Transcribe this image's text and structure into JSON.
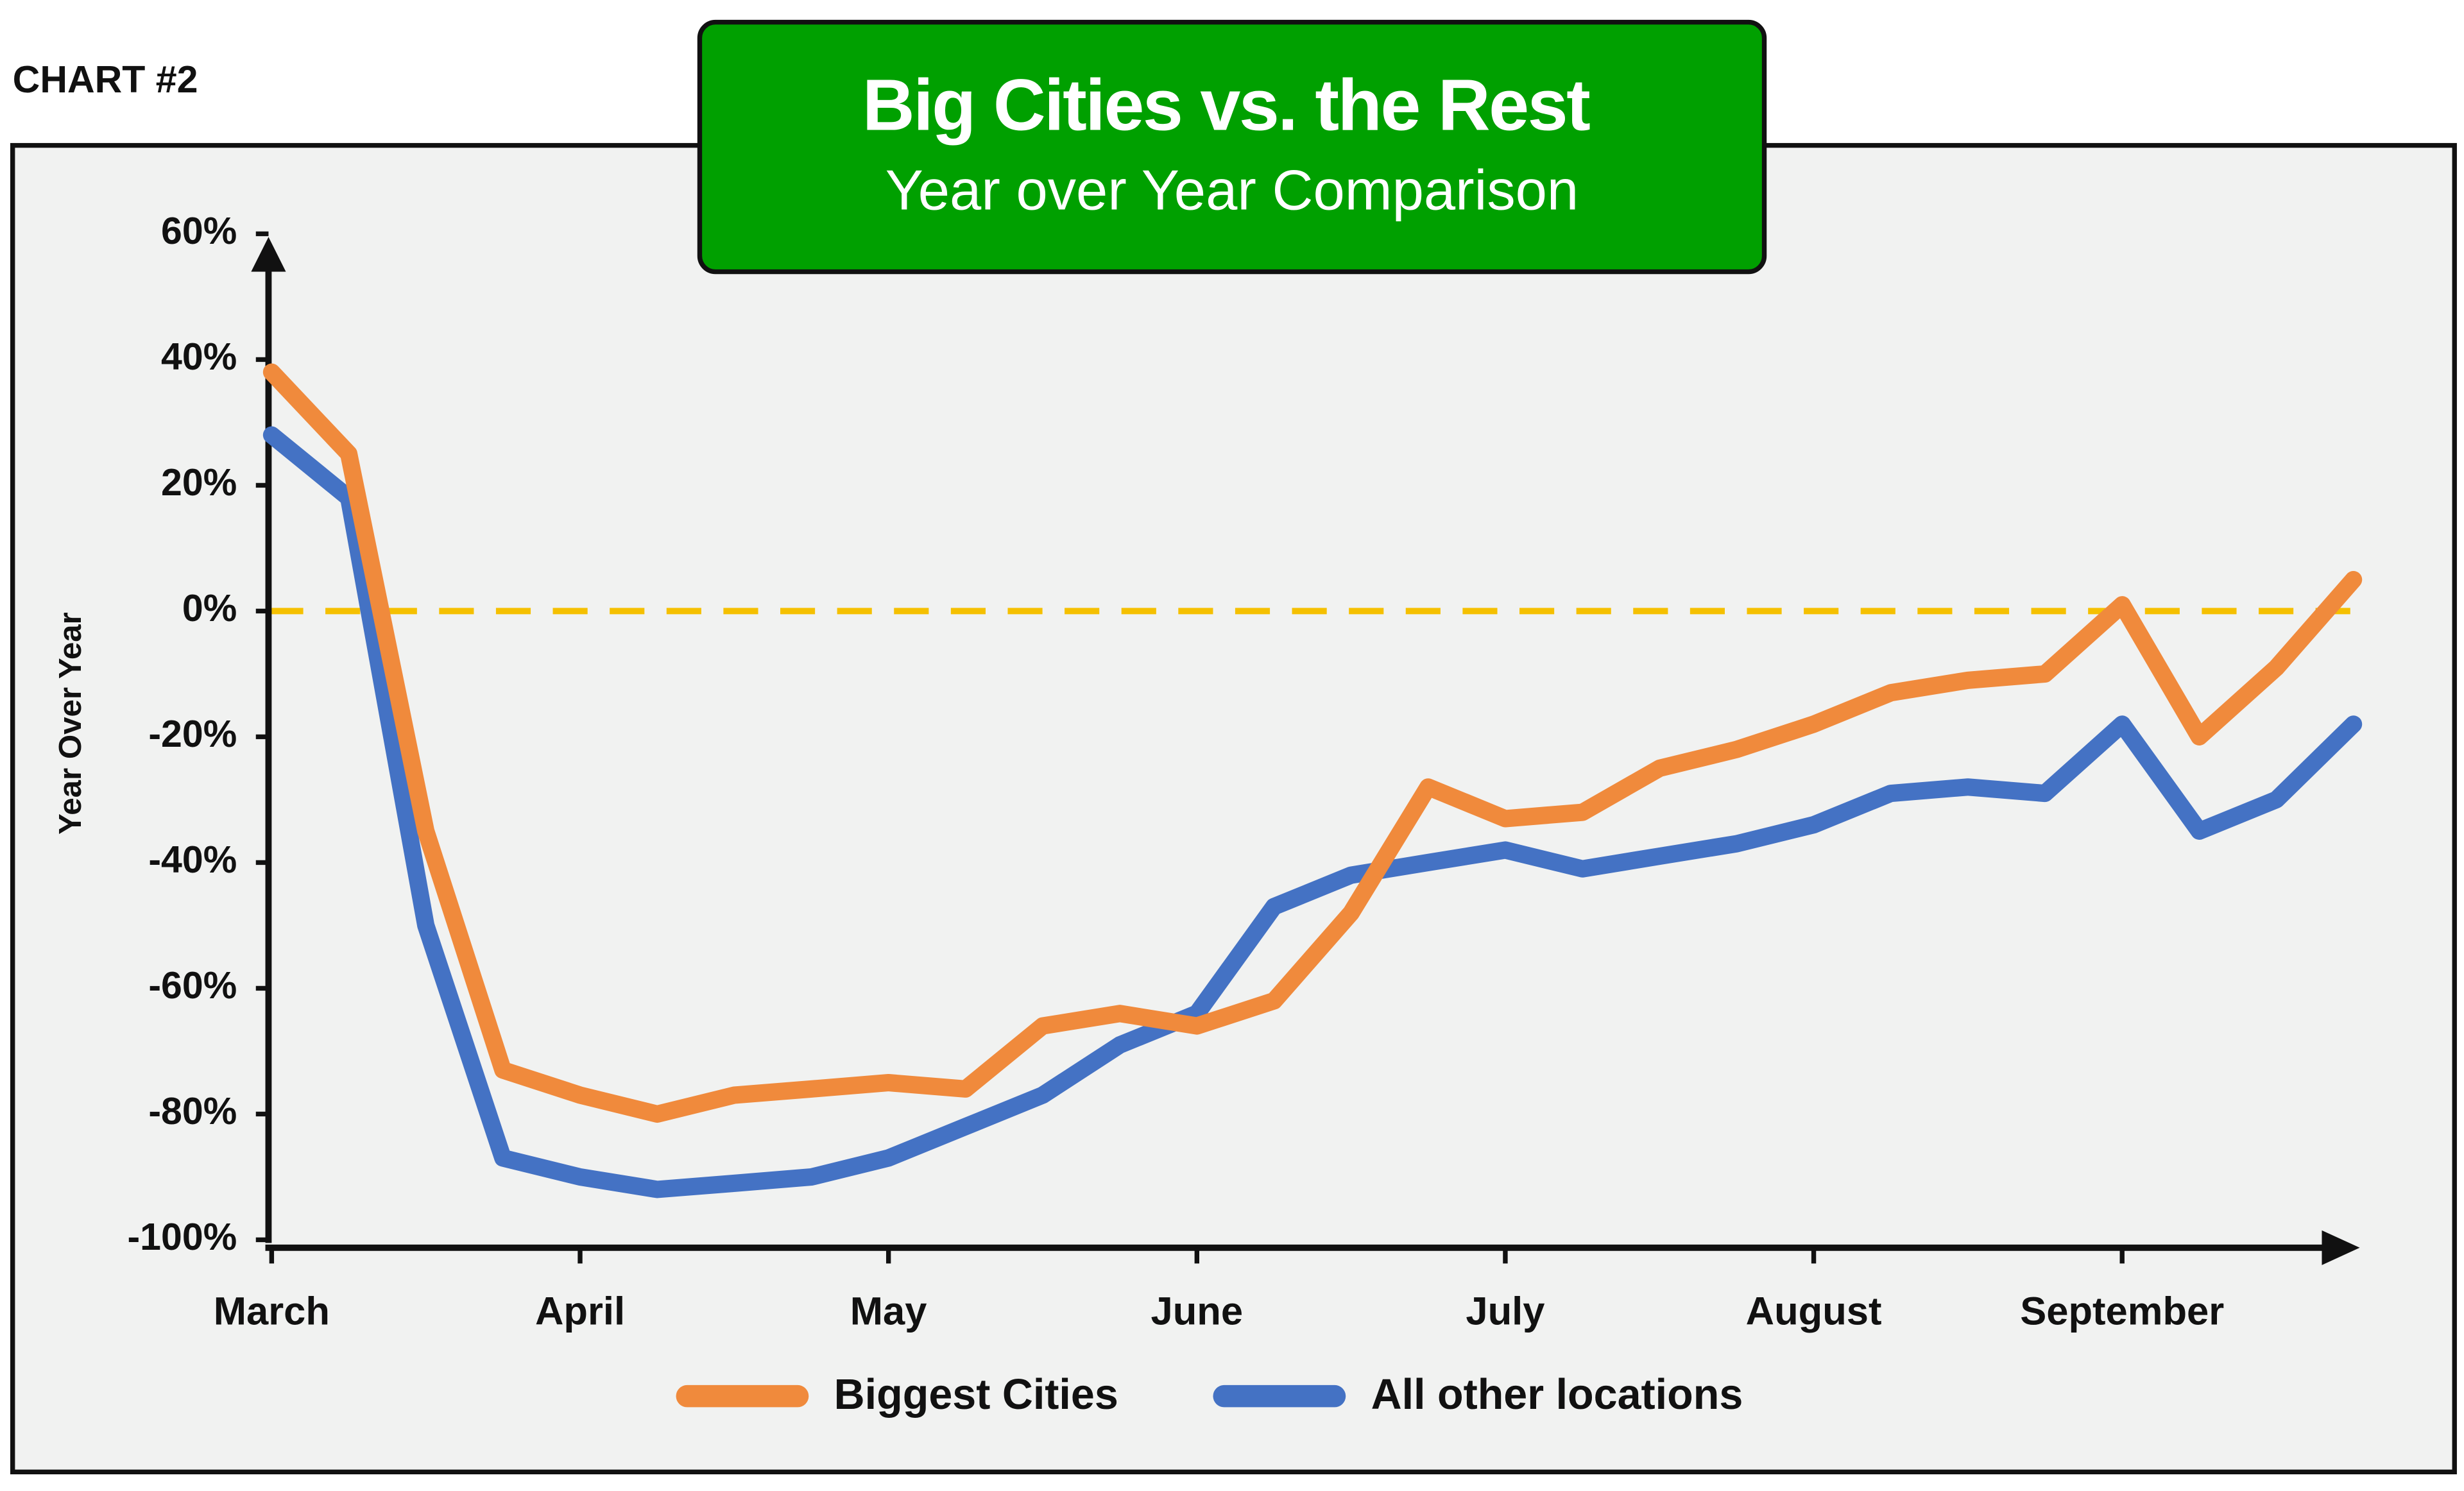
{
  "corner_label": "CHART #2",
  "chart_data": {
    "type": "line",
    "title": "Big Cities vs. the Rest",
    "subtitle": "Year over Year Comparison",
    "y_label": "Year Over Year",
    "categories": [
      "March",
      null,
      null,
      null,
      "April",
      null,
      null,
      null,
      "May",
      null,
      null,
      null,
      "June",
      null,
      null,
      null,
      "July",
      null,
      null,
      null,
      "August",
      null,
      null,
      null,
      "September",
      null,
      null,
      null
    ],
    "series": [
      {
        "name": "Biggest Cities",
        "color": "#f08a3c",
        "values": [
          38,
          25,
          -35,
          -73,
          -77,
          -80,
          -77,
          -76,
          -75,
          -76,
          -66,
          -64,
          -66,
          -62,
          -48,
          -28,
          -33,
          -32,
          -25,
          -22,
          -18,
          -13,
          -11,
          -10,
          1,
          -20,
          -9,
          5
        ]
      },
      {
        "name": "All other locations",
        "color": "#4472c4",
        "values": [
          28,
          18,
          -50,
          -87,
          -90,
          -92,
          -91,
          -90,
          -87,
          -82,
          -77,
          -69,
          -64,
          -47,
          -42,
          -40,
          -38,
          -41,
          -39,
          -37,
          -34,
          -29,
          -28,
          -29,
          -18,
          -35,
          -30,
          -18
        ]
      }
    ],
    "ylim": [
      -100,
      60
    ],
    "yticks": [
      {
        "value": 60,
        "label": "60%"
      },
      {
        "value": 40,
        "label": "40%"
      },
      {
        "value": 20,
        "label": "20%"
      },
      {
        "value": 0,
        "label": "0%"
      },
      {
        "value": -20,
        "label": "-20%"
      },
      {
        "value": -40,
        "label": "-40%"
      },
      {
        "value": -60,
        "label": "-60%"
      },
      {
        "value": -80,
        "label": "-80%"
      },
      {
        "value": -100,
        "label": "-100%"
      }
    ],
    "reference_line": {
      "value": 0,
      "color": "#f5c000"
    },
    "grid": false,
    "legend": "bottom"
  }
}
